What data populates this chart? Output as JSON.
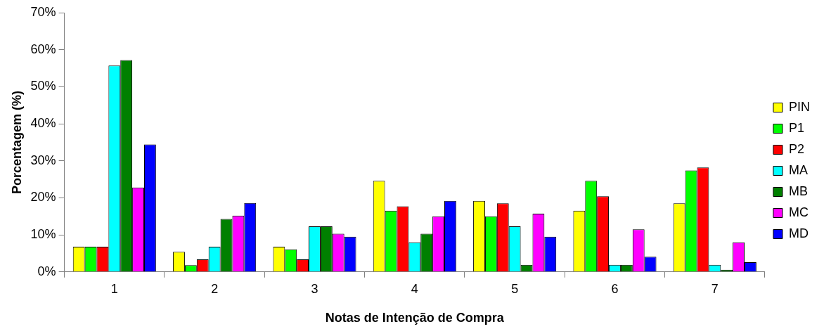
{
  "chart_data": {
    "type": "bar",
    "xlabel": "Notas de Intenção de Compra",
    "ylabel": "Porcentagem (%)",
    "categories": [
      "1",
      "2",
      "3",
      "4",
      "5",
      "6",
      "7"
    ],
    "series": [
      {
        "name": "PIN",
        "color": "#ffff00",
        "values": [
          6.8,
          5.4,
          6.8,
          24.6,
          19.2,
          16.5,
          18.5
        ]
      },
      {
        "name": "P1",
        "color": "#00ff00",
        "values": [
          6.8,
          1.8,
          6.1,
          16.5,
          15.0,
          24.6,
          27.4
        ]
      },
      {
        "name": "P2",
        "color": "#ff0000",
        "values": [
          6.8,
          3.4,
          3.4,
          17.7,
          18.5,
          20.4,
          28.2
        ]
      },
      {
        "name": "MA",
        "color": "#00ffff",
        "values": [
          55.7,
          6.8,
          12.3,
          8.0,
          12.3,
          1.9,
          1.9
        ]
      },
      {
        "name": "MB",
        "color": "#008000",
        "values": [
          57.2,
          14.3,
          12.3,
          10.3,
          1.9,
          1.9,
          0.6
        ]
      },
      {
        "name": "MC",
        "color": "#ff00ff",
        "values": [
          22.8,
          15.2,
          10.3,
          15.0,
          15.7,
          11.5,
          8.0
        ]
      },
      {
        "name": "MD",
        "color": "#0000ff",
        "values": [
          34.4,
          18.6,
          9.5,
          19.2,
          9.5,
          4.1,
          2.6
        ]
      }
    ],
    "ylim": [
      0,
      70
    ],
    "yticks": [
      {
        "value": 0,
        "label": "0%"
      },
      {
        "value": 10,
        "label": "10%"
      },
      {
        "value": 20,
        "label": "20%"
      },
      {
        "value": 30,
        "label": "30%"
      },
      {
        "value": 40,
        "label": "40%"
      },
      {
        "value": 50,
        "label": "50%"
      },
      {
        "value": 60,
        "label": "60%"
      },
      {
        "value": 70,
        "label": "70%"
      }
    ],
    "grid": false,
    "legend": "right"
  }
}
